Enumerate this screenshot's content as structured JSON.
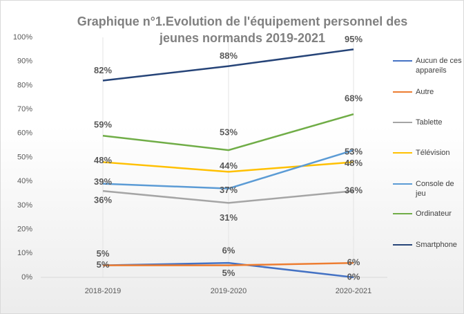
{
  "chart_data": {
    "type": "line",
    "title": "Graphique n°1.Evolution de l'équipement personnel des jeunes normands 2019-2021",
    "categories": [
      "2018-2019",
      "2019-2020",
      "2020-2021"
    ],
    "ylim": [
      0,
      100
    ],
    "yticks": [
      {
        "value": 0,
        "label": "0%"
      },
      {
        "value": 10,
        "label": "10%"
      },
      {
        "value": 20,
        "label": "20%"
      },
      {
        "value": 30,
        "label": "30%"
      },
      {
        "value": 40,
        "label": "40%"
      },
      {
        "value": 50,
        "label": "50%"
      },
      {
        "value": 60,
        "label": "60%"
      },
      {
        "value": 70,
        "label": "70%"
      },
      {
        "value": 80,
        "label": "80%"
      },
      {
        "value": 90,
        "label": "90%"
      },
      {
        "value": 100,
        "label": "100%"
      }
    ],
    "legend": "right",
    "series": [
      {
        "name": "Aucun de ces appareils",
        "color": "#4472c4",
        "values": [
          5,
          6,
          0
        ],
        "value_labels": [
          "5%",
          "6%",
          "0%"
        ]
      },
      {
        "name": "Autre",
        "color": "#ed7d31",
        "values": [
          5,
          5,
          6
        ],
        "value_labels": [
          "5%",
          "5%",
          "6%"
        ]
      },
      {
        "name": "Tablette",
        "color": "#a5a5a5",
        "values": [
          36,
          31,
          36
        ],
        "value_labels": [
          "36%",
          "31%",
          "36%"
        ]
      },
      {
        "name": "Télévision",
        "color": "#ffc000",
        "values": [
          48,
          44,
          48
        ],
        "value_labels": [
          "48%",
          "44%",
          "48%"
        ]
      },
      {
        "name": "Console de jeu",
        "color": "#5b9bd5",
        "values": [
          39,
          37,
          53
        ],
        "value_labels": [
          "39%",
          "37%",
          "53%"
        ]
      },
      {
        "name": "Ordinateur",
        "color": "#70ad47",
        "values": [
          59,
          53,
          68
        ],
        "value_labels": [
          "59%",
          "53%",
          "68%"
        ]
      },
      {
        "name": "Smartphone",
        "color": "#264478",
        "values": [
          82,
          88,
          95
        ],
        "value_labels": [
          "82%",
          "88%",
          "95%"
        ]
      }
    ]
  }
}
